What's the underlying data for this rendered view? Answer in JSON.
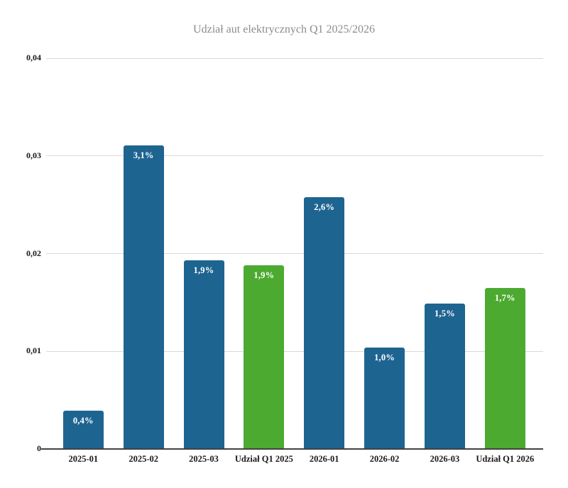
{
  "title": "Udział aut elektrycznych Q1 2025/2026",
  "colors": {
    "bar_blue": "#1e6491",
    "bar_green": "#4caa30",
    "gridline": "#d8d8d8",
    "axis_line": "#424242",
    "tick_text": "#1a1a1a",
    "title_text": "#8c8c8c",
    "bar_label_text": "#ffffff",
    "background": "#ffffff"
  },
  "chart_data": {
    "type": "bar",
    "title": "Udział aut elektrycznych Q1 2025/2026",
    "categories": [
      "2025-01",
      "2025-02",
      "2025-03",
      "Udział Q1 2025",
      "2026-01",
      "2026-02",
      "2026-03",
      "Udział Q1 2026"
    ],
    "values": [
      0.0039,
      0.0311,
      0.0193,
      0.0188,
      0.0258,
      0.0104,
      0.0149,
      0.0165
    ],
    "bar_labels": [
      "0,4%",
      "3,1%",
      "1,9%",
      "1,9%",
      "2,6%",
      "1,0%",
      "1,5%",
      "1,7%"
    ],
    "bar_colors": [
      "blue",
      "blue",
      "blue",
      "green",
      "blue",
      "blue",
      "blue",
      "green"
    ],
    "y_ticks": [
      {
        "value": 0.04,
        "label": "0,04"
      },
      {
        "value": 0.03,
        "label": "0,03"
      },
      {
        "value": 0.02,
        "label": "0,02"
      },
      {
        "value": 0.01,
        "label": "0,01"
      },
      {
        "value": 0.0,
        "label": "0"
      }
    ],
    "ylim": [
      0,
      0.04
    ],
    "xlabel": "",
    "ylabel": "",
    "grid": true,
    "legend": false
  }
}
